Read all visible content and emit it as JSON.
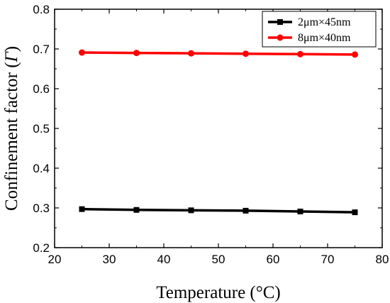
{
  "chart_data": {
    "type": "line",
    "xlabel": "Temperature (°C)",
    "ylabel_prefix": "Confinement factor (",
    "ylabel_symbol": "Γ",
    "ylabel_suffix": ")",
    "xlim": [
      20,
      80
    ],
    "ylim": [
      0.2,
      0.8
    ],
    "x_ticks": [
      "20",
      "30",
      "40",
      "50",
      "60",
      "70",
      "80"
    ],
    "y_ticks": [
      "0.2",
      "0.3",
      "0.4",
      "0.5",
      "0.6",
      "0.7",
      "0.8"
    ],
    "grid": false,
    "legend_position": "top-right",
    "x": [
      25,
      35,
      45,
      55,
      65,
      75
    ],
    "series": [
      {
        "name": "2μm×45nm",
        "color": "#000000",
        "marker": "square",
        "values": [
          0.297,
          0.295,
          0.294,
          0.293,
          0.291,
          0.289
        ]
      },
      {
        "name": "8μm×40nm",
        "color": "#ff0000",
        "marker": "circle",
        "values": [
          0.691,
          0.69,
          0.689,
          0.688,
          0.687,
          0.686
        ]
      }
    ]
  }
}
